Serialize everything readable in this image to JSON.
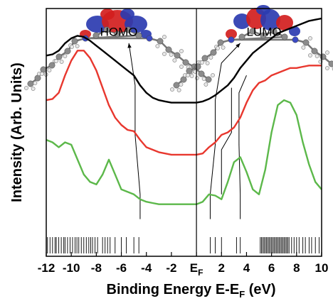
{
  "chart_data": {
    "type": "line",
    "xlabel": "Binding Energy E-E",
    "xlabel_sub": "F",
    "xlabel_unit": " (eV)",
    "ylabel": "Intensity (Arb. Units)",
    "xlim": [
      -12,
      10
    ],
    "ylim": [
      0,
      10
    ],
    "grid": false,
    "x_ticks": [
      {
        "value": -12,
        "label": "-12"
      },
      {
        "value": -10,
        "label": "-10"
      },
      {
        "value": -8,
        "label": "-8"
      },
      {
        "value": -6,
        "label": "-6"
      },
      {
        "value": -4,
        "label": "-4"
      },
      {
        "value": -2,
        "label": "-2"
      },
      {
        "value": 0,
        "label": "E",
        "sub": "F"
      },
      {
        "value": 2,
        "label": "2"
      },
      {
        "value": 4,
        "label": "4"
      },
      {
        "value": 6,
        "label": "6"
      },
      {
        "value": 8,
        "label": "8"
      },
      {
        "value": 10,
        "label": "10"
      }
    ],
    "series": [
      {
        "color": "#000000",
        "points": [
          [
            -12,
            8.1
          ],
          [
            -11.5,
            8.15
          ],
          [
            -11,
            8.3
          ],
          [
            -10.5,
            8.6
          ],
          [
            -10,
            8.8
          ],
          [
            -9.5,
            8.9
          ],
          [
            -9,
            8.85
          ],
          [
            -8.5,
            8.7
          ],
          [
            -8,
            8.5
          ],
          [
            -7.5,
            8.3
          ],
          [
            -7,
            8.1
          ],
          [
            -6.5,
            7.9
          ],
          [
            -6,
            7.7
          ],
          [
            -5.5,
            7.5
          ],
          [
            -5,
            7.3
          ],
          [
            -4.5,
            6.9
          ],
          [
            -4,
            6.6
          ],
          [
            -3.5,
            6.4
          ],
          [
            -3,
            6.3
          ],
          [
            -2.5,
            6.25
          ],
          [
            -2,
            6.2
          ],
          [
            -1.5,
            6.2
          ],
          [
            -1,
            6.2
          ],
          [
            -0.5,
            6.2
          ],
          [
            0,
            6.2
          ],
          [
            0.5,
            6.25
          ],
          [
            1,
            6.35
          ],
          [
            1.5,
            6.5
          ],
          [
            2,
            6.7
          ],
          [
            2.5,
            6.9
          ],
          [
            3,
            7.2
          ],
          [
            3.5,
            7.6
          ],
          [
            4,
            7.9
          ],
          [
            4.5,
            8.2
          ],
          [
            5,
            8.4
          ],
          [
            5.5,
            8.6
          ],
          [
            6,
            8.8
          ],
          [
            6.5,
            9.0
          ],
          [
            7,
            9.1
          ],
          [
            7.5,
            9.2
          ],
          [
            8,
            9.3
          ],
          [
            8.5,
            9.4
          ],
          [
            9,
            9.5
          ],
          [
            9.5,
            9.55
          ],
          [
            10,
            9.6
          ]
        ]
      },
      {
        "color": "#e8372e",
        "points": [
          [
            -12,
            6.3
          ],
          [
            -11.5,
            6.35
          ],
          [
            -11,
            6.6
          ],
          [
            -10.5,
            7.3
          ],
          [
            -10,
            7.9
          ],
          [
            -9.5,
            8.3
          ],
          [
            -9,
            8.3
          ],
          [
            -8.5,
            8.0
          ],
          [
            -8,
            7.5
          ],
          [
            -7.5,
            6.8
          ],
          [
            -7,
            6.1
          ],
          [
            -6.5,
            5.6
          ],
          [
            -6,
            5.3
          ],
          [
            -5.5,
            5.1
          ],
          [
            -5,
            5.05
          ],
          [
            -4.5,
            4.7
          ],
          [
            -4,
            4.4
          ],
          [
            -3.5,
            4.3
          ],
          [
            -3,
            4.2
          ],
          [
            -2.5,
            4.15
          ],
          [
            -2,
            4.1
          ],
          [
            -1.5,
            4.1
          ],
          [
            -1,
            4.1
          ],
          [
            -0.5,
            4.1
          ],
          [
            0,
            4.1
          ],
          [
            0.5,
            4.15
          ],
          [
            1,
            4.4
          ],
          [
            1.5,
            4.6
          ],
          [
            2,
            4.9
          ],
          [
            2.5,
            5.0
          ],
          [
            3,
            5.2
          ],
          [
            3.5,
            5.6
          ],
          [
            4,
            6.2
          ],
          [
            4.5,
            6.7
          ],
          [
            5,
            7.0
          ],
          [
            5.5,
            7.1
          ],
          [
            6,
            7.3
          ],
          [
            6.5,
            7.4
          ],
          [
            7,
            7.5
          ],
          [
            7.5,
            7.6
          ],
          [
            8,
            7.6
          ],
          [
            8.5,
            7.65
          ],
          [
            9,
            7.7
          ],
          [
            9.5,
            7.7
          ],
          [
            10,
            7.7
          ]
        ]
      },
      {
        "color": "#5cb84a",
        "points": [
          [
            -12,
            4.7
          ],
          [
            -11.5,
            4.6
          ],
          [
            -11,
            4.4
          ],
          [
            -10.5,
            4.6
          ],
          [
            -10,
            4.5
          ],
          [
            -9.5,
            3.9
          ],
          [
            -9,
            3.3
          ],
          [
            -8.5,
            3.0
          ],
          [
            -8,
            2.9
          ],
          [
            -7.5,
            3.3
          ],
          [
            -7,
            3.9
          ],
          [
            -6.5,
            3.3
          ],
          [
            -6,
            2.7
          ],
          [
            -5.5,
            2.6
          ],
          [
            -5,
            2.5
          ],
          [
            -4.5,
            2.3
          ],
          [
            -4,
            2.2
          ],
          [
            -3.5,
            2.15
          ],
          [
            -3,
            2.1
          ],
          [
            -2.5,
            2.1
          ],
          [
            -2,
            2.1
          ],
          [
            -1.5,
            2.1
          ],
          [
            -1,
            2.1
          ],
          [
            -0.5,
            2.1
          ],
          [
            0,
            2.1
          ],
          [
            0.5,
            2.2
          ],
          [
            1,
            2.5
          ],
          [
            1.5,
            2.45
          ],
          [
            2,
            2.3
          ],
          [
            2.5,
            3.0
          ],
          [
            3,
            3.8
          ],
          [
            3.5,
            4.0
          ],
          [
            4,
            3.4
          ],
          [
            4.5,
            2.7
          ],
          [
            5,
            2.5
          ],
          [
            5.5,
            3.5
          ],
          [
            6,
            5.0
          ],
          [
            6.5,
            6.1
          ],
          [
            7,
            6.3
          ],
          [
            7.5,
            6.2
          ],
          [
            8,
            5.7
          ],
          [
            8.5,
            4.6
          ],
          [
            9,
            3.7
          ],
          [
            9.5,
            3.0
          ],
          [
            10,
            2.7
          ]
        ]
      }
    ],
    "stick_spectrum": [
      -11.9,
      -11.7,
      -11.5,
      -11.3,
      -11.2,
      -11.0,
      -10.8,
      -10.6,
      -10.5,
      -10.3,
      -10.1,
      -9.9,
      -9.7,
      -9.55,
      -9.4,
      -9.2,
      -9.0,
      -8.8,
      -8.6,
      -8.45,
      -8.3,
      -8.1,
      -7.9,
      -7.5,
      -7.3,
      -7.1,
      -6.9,
      -6.5,
      -6.0,
      -5.6,
      -5.0,
      -4.6,
      1.1,
      1.5,
      2.0,
      3.2,
      3.5,
      5.1,
      5.2,
      5.3,
      5.4,
      5.5,
      5.6,
      5.7,
      5.8,
      5.9,
      6.0,
      6.1,
      6.2,
      6.3,
      6.4,
      6.5,
      6.6,
      6.7,
      6.8,
      6.9,
      7.0,
      7.1,
      7.2,
      7.3,
      7.4,
      7.6,
      7.8,
      8.0,
      8.2,
      8.5,
      8.7,
      9.0,
      9.2,
      9.5,
      9.8
    ],
    "annotations": [
      {
        "text": "HOMO"
      },
      {
        "text": "LUMO"
      }
    ],
    "correlation_lines": [
      {
        "label_ref": "HOMO",
        "points": [
          [
            -4.5,
            1.5
          ],
          [
            -4.5,
            2.5
          ],
          [
            -4.9,
            4.9
          ],
          [
            -4.9,
            6.9
          ],
          [
            -5.4,
            8.6
          ]
        ]
      },
      {
        "label_ref": "LUMO",
        "points": [
          [
            1.1,
            1.5
          ],
          [
            1.1,
            2.5
          ],
          [
            1.5,
            4.5
          ],
          [
            1.5,
            6.3
          ],
          [
            2.0,
            7.8
          ],
          [
            3.5,
            8.6
          ]
        ]
      },
      {
        "points": [
          [
            2.0,
            2.5
          ],
          [
            2.0,
            4.3
          ],
          [
            2.8,
            5.0
          ],
          [
            2.8,
            6.8
          ]
        ]
      },
      {
        "points": [
          [
            3.5,
            1.5
          ],
          [
            3.5,
            2.5
          ],
          [
            3.4,
            4.5
          ],
          [
            3.4,
            6.6
          ],
          [
            4.0,
            7.3
          ]
        ]
      }
    ]
  }
}
